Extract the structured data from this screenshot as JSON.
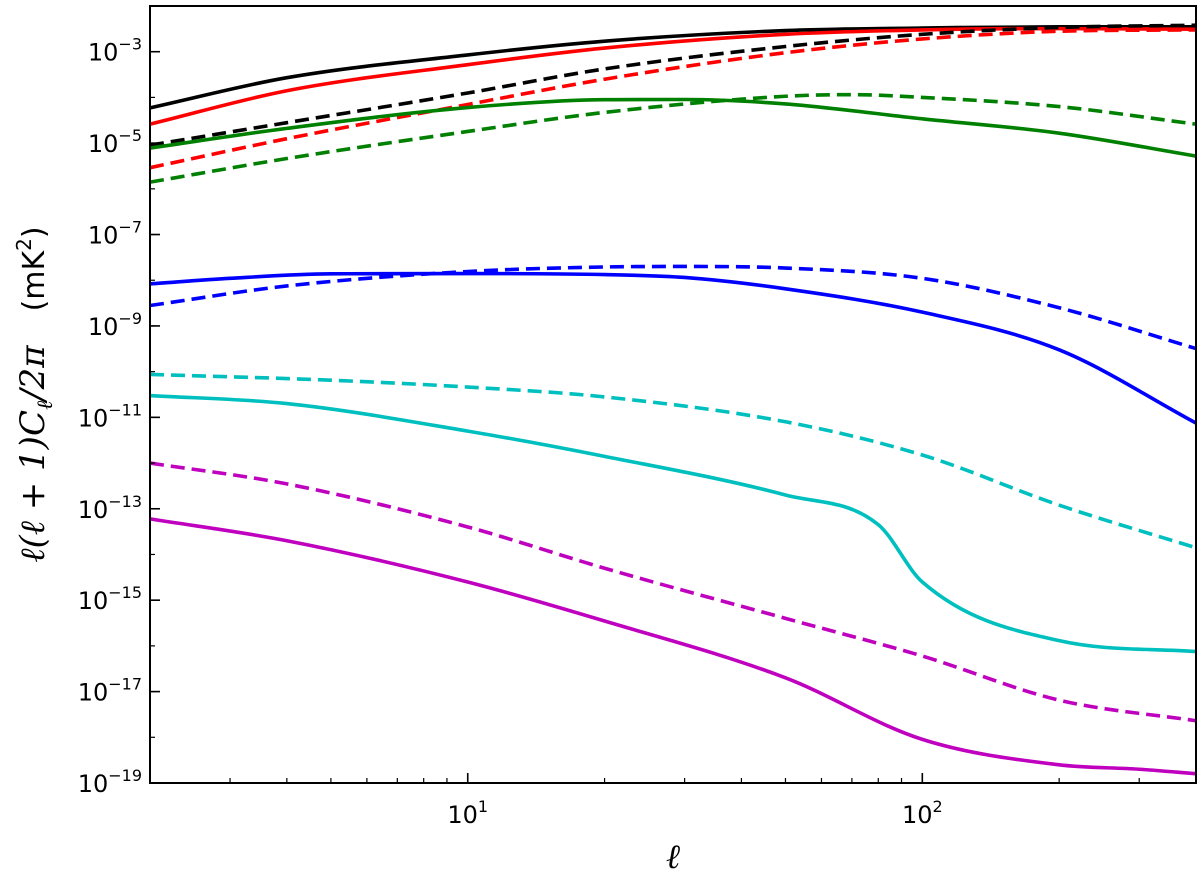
{
  "chart_data": {
    "type": "line",
    "title": "",
    "xlabel": "ℓ",
    "ylabel": "ℓ(ℓ + 1)C",
    "ylabel_sub": "ℓ",
    "ylabel_tail": "/2π",
    "ylabel_unit": "(mK",
    "ylabel_unit_sup": "2",
    "ylabel_unit_close": ")",
    "x_scale": "log",
    "y_scale": "log",
    "xlim": [
      2,
      400
    ],
    "ylim": [
      1e-19,
      0.01
    ],
    "grid": false,
    "legend": "none",
    "x_ticks": [
      {
        "base": "10",
        "exp": "1",
        "value": 10
      },
      {
        "base": "10",
        "exp": "2",
        "value": 100
      }
    ],
    "y_ticks": [
      {
        "base": "10",
        "exp": "−3",
        "value": 0.001
      },
      {
        "base": "10",
        "exp": "−5",
        "value": 1e-05
      },
      {
        "base": "10",
        "exp": "−7",
        "value": 1e-07
      },
      {
        "base": "10",
        "exp": "−9",
        "value": 1e-09
      },
      {
        "base": "10",
        "exp": "−11",
        "value": 1e-11
      },
      {
        "base": "10",
        "exp": "−13",
        "value": 1e-13
      },
      {
        "base": "10",
        "exp": "−15",
        "value": 1e-15
      },
      {
        "base": "10",
        "exp": "−17",
        "value": 1e-17
      },
      {
        "base": "10",
        "exp": "−19",
        "value": 1e-19
      }
    ],
    "series": [
      {
        "color": "#000000",
        "style": "solid",
        "x": [
          2,
          4,
          10,
          20,
          50,
          100,
          200,
          400
        ],
        "y": [
          5.9e-05,
          0.00027,
          0.00085,
          0.0017,
          0.0029,
          0.0033,
          0.0035,
          0.0035
        ]
      },
      {
        "color": "#ff0000",
        "style": "solid",
        "x": [
          2,
          4,
          10,
          20,
          50,
          100,
          200,
          400
        ],
        "y": [
          2.6e-05,
          0.00014,
          0.00052,
          0.0012,
          0.0024,
          0.003,
          0.0032,
          0.0031
        ]
      },
      {
        "color": "#000000",
        "style": "dashed",
        "x": [
          2,
          4,
          10,
          20,
          50,
          100,
          200,
          400
        ],
        "y": [
          9e-06,
          2.8e-05,
          0.000125,
          0.00042,
          0.0013,
          0.0024,
          0.0034,
          0.0038
        ]
      },
      {
        "color": "#ff0000",
        "style": "dashed",
        "x": [
          2,
          4,
          10,
          20,
          50,
          100,
          200,
          400
        ],
        "y": [
          2.9e-06,
          1.25e-05,
          7e-05,
          0.00025,
          0.00095,
          0.0019,
          0.0028,
          0.003
        ]
      },
      {
        "color": "#008000",
        "style": "solid",
        "x": [
          2,
          4,
          10,
          20,
          30,
          50,
          100,
          200,
          400
        ],
        "y": [
          7.8e-06,
          2.1e-05,
          6e-05,
          8.9e-05,
          9e-05,
          7.2e-05,
          3.4e-05,
          1.65e-05,
          5.2e-06
        ]
      },
      {
        "color": "#008000",
        "style": "dashed",
        "x": [
          2,
          4,
          10,
          20,
          50,
          70,
          100,
          200,
          400
        ],
        "y": [
          1.4e-06,
          4.6e-06,
          1.8e-05,
          4.7e-05,
          0.000106,
          0.000115,
          0.0001,
          6.3e-05,
          2.6e-05
        ]
      },
      {
        "color": "#0000ff",
        "style": "solid",
        "x": [
          2,
          3,
          5,
          10,
          20,
          30,
          50,
          100,
          200,
          400
        ],
        "y": [
          8.3e-09,
          1.1e-08,
          1.38e-08,
          1.4e-08,
          1.33e-08,
          1.15e-08,
          6.5e-09,
          2e-09,
          3e-10,
          7.5e-12
        ]
      },
      {
        "color": "#0000ff",
        "style": "dashed",
        "x": [
          2,
          4,
          10,
          20,
          30,
          50,
          100,
          200,
          400
        ],
        "y": [
          2.8e-09,
          7.5e-09,
          1.55e-08,
          1.95e-08,
          2e-08,
          1.85e-08,
          1.1e-08,
          2.5e-09,
          3.2e-10
        ]
      },
      {
        "color": "#00bfbf",
        "style": "dashed",
        "x": [
          2,
          5,
          10,
          20,
          50,
          100,
          200,
          400
        ],
        "y": [
          8.7e-11,
          6.5e-11,
          4.6e-11,
          2.8e-11,
          8e-12,
          1.5e-12,
          1.2e-13,
          1.4e-14
        ]
      },
      {
        "color": "#00bfbf",
        "style": "solid",
        "x": [
          2,
          4,
          10,
          20,
          50,
          80,
          100,
          200,
          400
        ],
        "y": [
          3e-11,
          2e-11,
          5e-12,
          1.4e-12,
          2e-13,
          4.5e-14,
          2.5e-15,
          1.3e-16,
          7.5e-17
        ]
      },
      {
        "color": "#bf00bf",
        "style": "dashed",
        "x": [
          2,
          4,
          10,
          20,
          50,
          100,
          200,
          400
        ],
        "y": [
          1e-12,
          3.5e-13,
          4e-14,
          5e-15,
          4e-16,
          6e-17,
          6.5e-18,
          2.3e-18
        ]
      },
      {
        "color": "#bf00bf",
        "style": "solid",
        "x": [
          2,
          4,
          10,
          20,
          50,
          100,
          200,
          300,
          400
        ],
        "y": [
          6e-14,
          2e-14,
          2.5e-15,
          3.5e-16,
          2e-17,
          9e-19,
          2.5e-19,
          2e-19,
          1.6e-19
        ]
      }
    ]
  }
}
